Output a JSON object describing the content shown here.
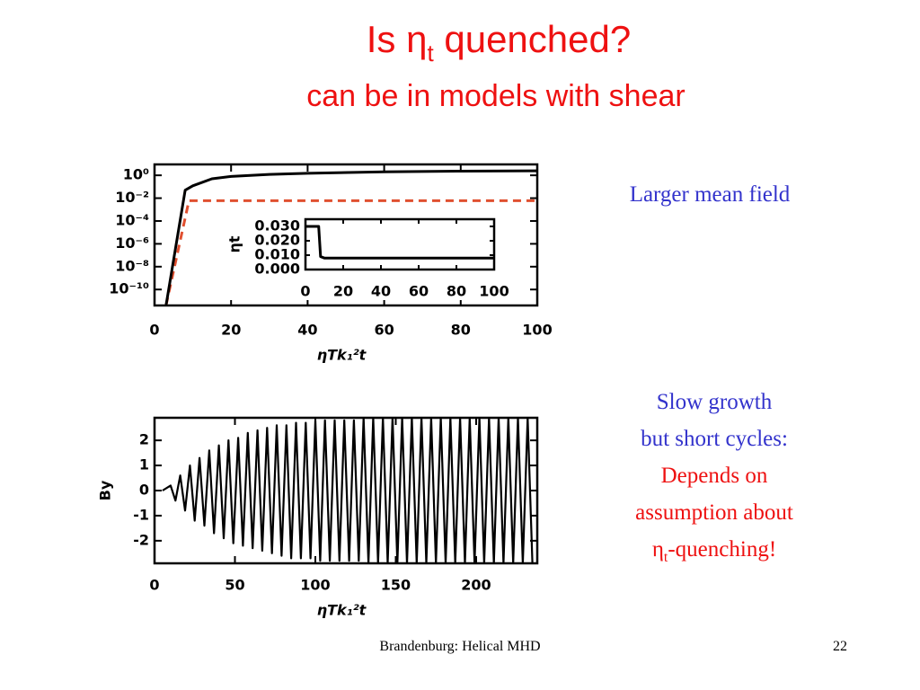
{
  "title": [
    "Is η",
    "t",
    " quenched?"
  ],
  "subtitle": "can be in models with shear",
  "notes": {
    "top": "Larger mean field",
    "blue": [
      "Slow growth",
      "but short cycles:"
    ],
    "red": [
      "Depends on",
      "assumption about"
    ],
    "last": [
      "η",
      "t",
      "-quenching!"
    ]
  },
  "footer": {
    "text": "Brandenburg: Helical MHD",
    "page": "22"
  },
  "chart_data": [
    {
      "type": "line",
      "xlabel": "ηTk₁²t",
      "xlim": [
        0,
        100
      ],
      "xticks": [
        0,
        20,
        40,
        60,
        80,
        100
      ],
      "ylog": true,
      "ylim": [
        4e-12,
        9
      ],
      "yticks": [
        {
          "value": 1,
          "label": "10⁰"
        },
        {
          "value": 0.01,
          "label": "10⁻²"
        },
        {
          "value": 0.0001,
          "label": "10⁻⁴"
        },
        {
          "value": 1e-06,
          "label": "10⁻⁶"
        },
        {
          "value": 1e-08,
          "label": "10⁻⁸"
        },
        {
          "value": 1e-10,
          "label": "10⁻¹⁰"
        }
      ],
      "series": [
        {
          "color": "#e05030",
          "style": "dashed",
          "x": [
            3,
            9,
            100
          ],
          "values": [
            4e-12,
            0.006,
            0.006
          ]
        },
        {
          "color": "#000000",
          "style": "solid",
          "x": [
            3,
            8,
            10,
            15,
            20,
            30,
            40,
            60,
            80,
            100
          ],
          "values": [
            4e-12,
            0.05,
            0.12,
            0.5,
            0.8,
            1.2,
            1.5,
            2,
            2.3,
            2.5
          ]
        }
      ]
    },
    {
      "type": "line",
      "ylabel": "ηt",
      "xlim": [
        0,
        100
      ],
      "xticks": [
        0,
        20,
        40,
        60,
        80,
        100
      ],
      "ylim": [
        0,
        0.035
      ],
      "yticks": [
        {
          "value": 0,
          "label": "0.000"
        },
        {
          "value": 0.01,
          "label": "0.010"
        },
        {
          "value": 0.02,
          "label": "0.020"
        },
        {
          "value": 0.03,
          "label": "0.030"
        }
      ],
      "series": [
        {
          "color": "#000000",
          "style": "solid",
          "x": [
            0,
            7,
            8,
            10,
            100
          ],
          "values": [
            0.03,
            0.03,
            0.009,
            0.008,
            0.008
          ]
        }
      ]
    },
    {
      "type": "line",
      "xlabel": "ηTk₁²t",
      "ylabel": "By",
      "xlim": [
        0,
        238
      ],
      "xticks": [
        0,
        50,
        100,
        150,
        200
      ],
      "ylim": [
        -2.9,
        2.9
      ],
      "yticks": [
        -2,
        -1,
        0,
        1,
        2
      ],
      "series": [
        {
          "color": "#000000",
          "style": "solid",
          "x": [
            5,
            10,
            13,
            16,
            19,
            22,
            25,
            28,
            31,
            34,
            37,
            40,
            43,
            46,
            49,
            52,
            55,
            58,
            61,
            64,
            67,
            70,
            73,
            76,
            79,
            82,
            85,
            88,
            91,
            94,
            97,
            100,
            103,
            106,
            109,
            112,
            115,
            118,
            121,
            124,
            127,
            130,
            133,
            136,
            139,
            142,
            145,
            148,
            151,
            154,
            157,
            160,
            163,
            166,
            169,
            172,
            175,
            178,
            181,
            184,
            187,
            190,
            193,
            196,
            199,
            202,
            205,
            208,
            211,
            214,
            217,
            220,
            223,
            226,
            229,
            232,
            235
          ],
          "values": [
            0,
            0.2,
            -0.4,
            0.6,
            -0.8,
            1.0,
            -1.2,
            1.3,
            -1.4,
            1.6,
            -1.7,
            1.8,
            -1.9,
            2.0,
            -2.1,
            2.1,
            -2.2,
            2.3,
            -2.3,
            2.4,
            -2.4,
            2.5,
            -2.5,
            2.6,
            -2.6,
            2.6,
            -2.7,
            2.7,
            -2.7,
            2.7,
            -2.7,
            2.8,
            -2.8,
            2.8,
            -2.8,
            2.8,
            -2.8,
            2.8,
            -2.8,
            2.8,
            -2.8,
            2.9,
            -2.9,
            2.9,
            -2.9,
            2.9,
            -2.9,
            2.9,
            -2.9,
            2.9,
            -2.9,
            2.9,
            -2.9,
            2.9,
            -2.9,
            2.9,
            -2.9,
            2.9,
            -2.9,
            2.9,
            -2.9,
            2.9,
            -2.9,
            2.9,
            -2.9,
            2.9,
            -2.9,
            2.9,
            -2.9,
            2.9,
            -2.9,
            2.9,
            -2.9,
            2.9,
            -2.9,
            2.9,
            -2.9
          ]
        }
      ]
    }
  ]
}
